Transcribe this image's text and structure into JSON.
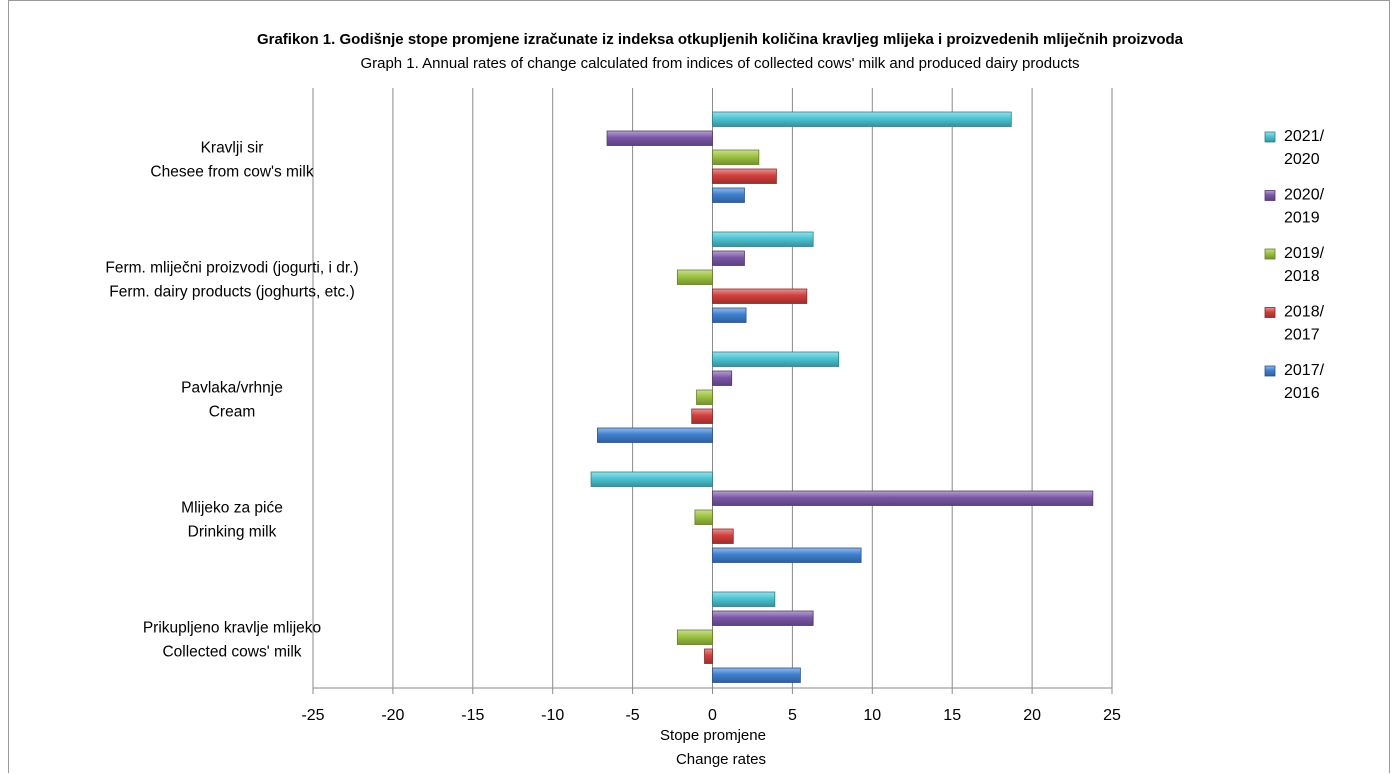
{
  "chart_data": {
    "type": "bar",
    "orientation": "horizontal",
    "title": "Grafikon 1. Godišnje stope  promjene izračunate iz indeksa otkupljenih količina kravljeg mlijeka i proizvedenih mliječnih proizvoda",
    "subtitle": "Graph 1. Annual rates of change calculated from indices of collected cows' milk and produced dairy products",
    "xlabel_line1": "Stope promjene",
    "xlabel_line2": "Change rates",
    "xlim": [
      -25,
      25
    ],
    "xticks": [
      "-25",
      "-20",
      "-15",
      "-10",
      "-5",
      "0",
      "5",
      "10",
      "15",
      "20",
      "25"
    ],
    "grid": "vertical",
    "legend_position": "right",
    "categories": [
      {
        "line1": "Kravlji sir",
        "line2": "Chesee from cow's milk"
      },
      {
        "line1": "Ferm. mliječni proizvodi (jogurti, i dr.)",
        "line2": "Ferm. dairy products (joghurts, etc.)"
      },
      {
        "line1": "Pavlaka/vrhnje",
        "line2": "Cream"
      },
      {
        "line1": "Mlijeko za piće",
        "line2": "Drinking milk"
      },
      {
        "line1": "Prikupljeno kravlje mlijeko",
        "line2": "Collected cows' milk"
      }
    ],
    "series": [
      {
        "name": "2021/ 2020",
        "legend_line1": "2021/",
        "legend_line2": "2020",
        "color": "#4bc3d1",
        "values": [
          18.7,
          6.3,
          7.9,
          -7.6,
          3.9
        ]
      },
      {
        "name": "2020/ 2019",
        "legend_line1": "2020/",
        "legend_line2": "2019",
        "color": "#7a57a6",
        "values": [
          -6.6,
          2.0,
          1.2,
          23.8,
          6.3
        ]
      },
      {
        "name": "2019/ 2018",
        "legend_line1": "2019/",
        "legend_line2": "2018",
        "color": "#9cc240",
        "values": [
          2.9,
          -2.2,
          -1.0,
          -1.1,
          -2.2
        ]
      },
      {
        "name": "2018/ 2017",
        "legend_line1": "2018/",
        "legend_line2": "2017",
        "color": "#d13f3c",
        "values": [
          4.0,
          5.9,
          -1.3,
          1.3,
          -0.5
        ]
      },
      {
        "name": "2017/ 2016",
        "legend_line1": "2017/",
        "legend_line2": "2016",
        "color": "#3f7fcf",
        "values": [
          2.0,
          2.1,
          -7.2,
          9.3,
          5.5
        ]
      }
    ]
  }
}
